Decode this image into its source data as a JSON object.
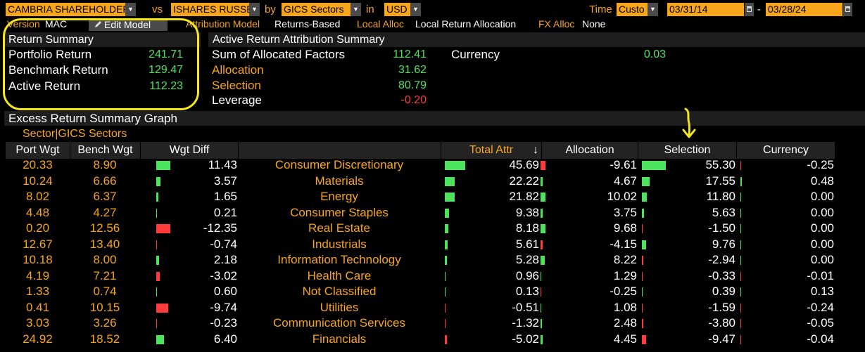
{
  "toolbar": {
    "portfolio": "CAMBRIA SHAREHOLDER",
    "vs_label": "vs",
    "benchmark": "ISHARES RUSSE",
    "by_label": "by",
    "grouping": "GICS Sectors",
    "in_label": "in",
    "currency": "USD",
    "time_label": "Time",
    "time_value": "Custo",
    "start_date": "03/31/14",
    "end_date": "03/28/24",
    "dash": "-"
  },
  "settings": {
    "version_label": "Version",
    "version_value": "MAC",
    "edit_model": "Edit Model",
    "attr_model_label": "Attribution Model",
    "attr_model_value": "Returns-Based",
    "local_alloc_label": "Local Alloc",
    "local_alloc_value": "Local Return Allocation",
    "fx_alloc_label": "FX Alloc",
    "fx_alloc_value": "None"
  },
  "return_summary": {
    "title": "Return Summary",
    "rows": [
      {
        "label": "Portfolio Return",
        "value": "241.71"
      },
      {
        "label": "Benchmark Return",
        "value": "129.47"
      },
      {
        "label": "Active Return",
        "value": "112.23"
      }
    ]
  },
  "active_summary": {
    "title": "Active Return Attribution Summary",
    "rows": [
      {
        "label": "Sum of Allocated Factors",
        "value": "112.41"
      },
      {
        "label": "Allocation",
        "value": "31.62"
      },
      {
        "label": "Selection",
        "value": "80.79"
      },
      {
        "label": "Leverage",
        "value": "-0.20"
      }
    ],
    "currency_label": "Currency",
    "currency_value": "0.03"
  },
  "graph_section": {
    "title": "Excess Return Summary Graph",
    "breakdown": "Sector|GICS Sectors"
  },
  "table": {
    "headers": {
      "port_wgt": "Port Wgt",
      "bench_wgt": "Bench Wgt",
      "wgt_diff": "Wgt Diff",
      "total_attr": "Total Attr",
      "sort_arrow": "↓",
      "allocation": "Allocation",
      "selection": "Selection",
      "currency": "Currency"
    },
    "rows": [
      {
        "port": "20.33",
        "bench": "8.90",
        "diff": "11.43",
        "sector": "Consumer Discretionary",
        "total": "45.69",
        "alloc": "-9.61",
        "sel": "55.30",
        "curr": "-0.25"
      },
      {
        "port": "10.24",
        "bench": "6.66",
        "diff": "3.57",
        "sector": "Materials",
        "total": "22.22",
        "alloc": "4.67",
        "sel": "17.55",
        "curr": "0.48"
      },
      {
        "port": "8.02",
        "bench": "6.37",
        "diff": "1.65",
        "sector": "Energy",
        "total": "21.82",
        "alloc": "10.02",
        "sel": "11.80",
        "curr": "0.00"
      },
      {
        "port": "4.48",
        "bench": "4.27",
        "diff": "0.21",
        "sector": "Consumer Staples",
        "total": "9.38",
        "alloc": "3.75",
        "sel": "5.63",
        "curr": "0.00"
      },
      {
        "port": "0.20",
        "bench": "12.56",
        "diff": "-12.35",
        "sector": "Real Estate",
        "total": "8.18",
        "alloc": "9.68",
        "sel": "-1.50",
        "curr": "0.00"
      },
      {
        "port": "12.67",
        "bench": "13.40",
        "diff": "-0.74",
        "sector": "Industrials",
        "total": "5.61",
        "alloc": "-4.15",
        "sel": "9.76",
        "curr": "0.00"
      },
      {
        "port": "10.18",
        "bench": "8.00",
        "diff": "2.18",
        "sector": "Information Technology",
        "total": "5.28",
        "alloc": "8.22",
        "sel": "-2.94",
        "curr": "0.00"
      },
      {
        "port": "4.19",
        "bench": "7.21",
        "diff": "-3.02",
        "sector": "Health Care",
        "total": "0.96",
        "alloc": "1.29",
        "sel": "-0.33",
        "curr": "-0.01"
      },
      {
        "port": "1.33",
        "bench": "0.74",
        "diff": "0.60",
        "sector": "Not Classified",
        "total": "0.13",
        "alloc": "-0.25",
        "sel": "0.39",
        "curr": "0.13"
      },
      {
        "port": "0.41",
        "bench": "10.15",
        "diff": "-9.74",
        "sector": "Utilities",
        "total": "-0.51",
        "alloc": "1.08",
        "sel": "-1.59",
        "curr": "-0.24"
      },
      {
        "port": "3.03",
        "bench": "3.26",
        "diff": "-0.23",
        "sector": "Communication Services",
        "total": "-1.32",
        "alloc": "2.48",
        "sel": "-3.80",
        "curr": "-0.05"
      },
      {
        "port": "24.92",
        "bench": "18.52",
        "diff": "6.40",
        "sector": "Financials",
        "total": "-5.02",
        "alloc": "4.45",
        "sel": "-9.47",
        "curr": "-0.04"
      }
    ]
  },
  "colors": {
    "accent": "#f7a51a",
    "positive": "#4ee35f",
    "negative": "#ff3b3b",
    "annotation": "#f5e61e"
  }
}
